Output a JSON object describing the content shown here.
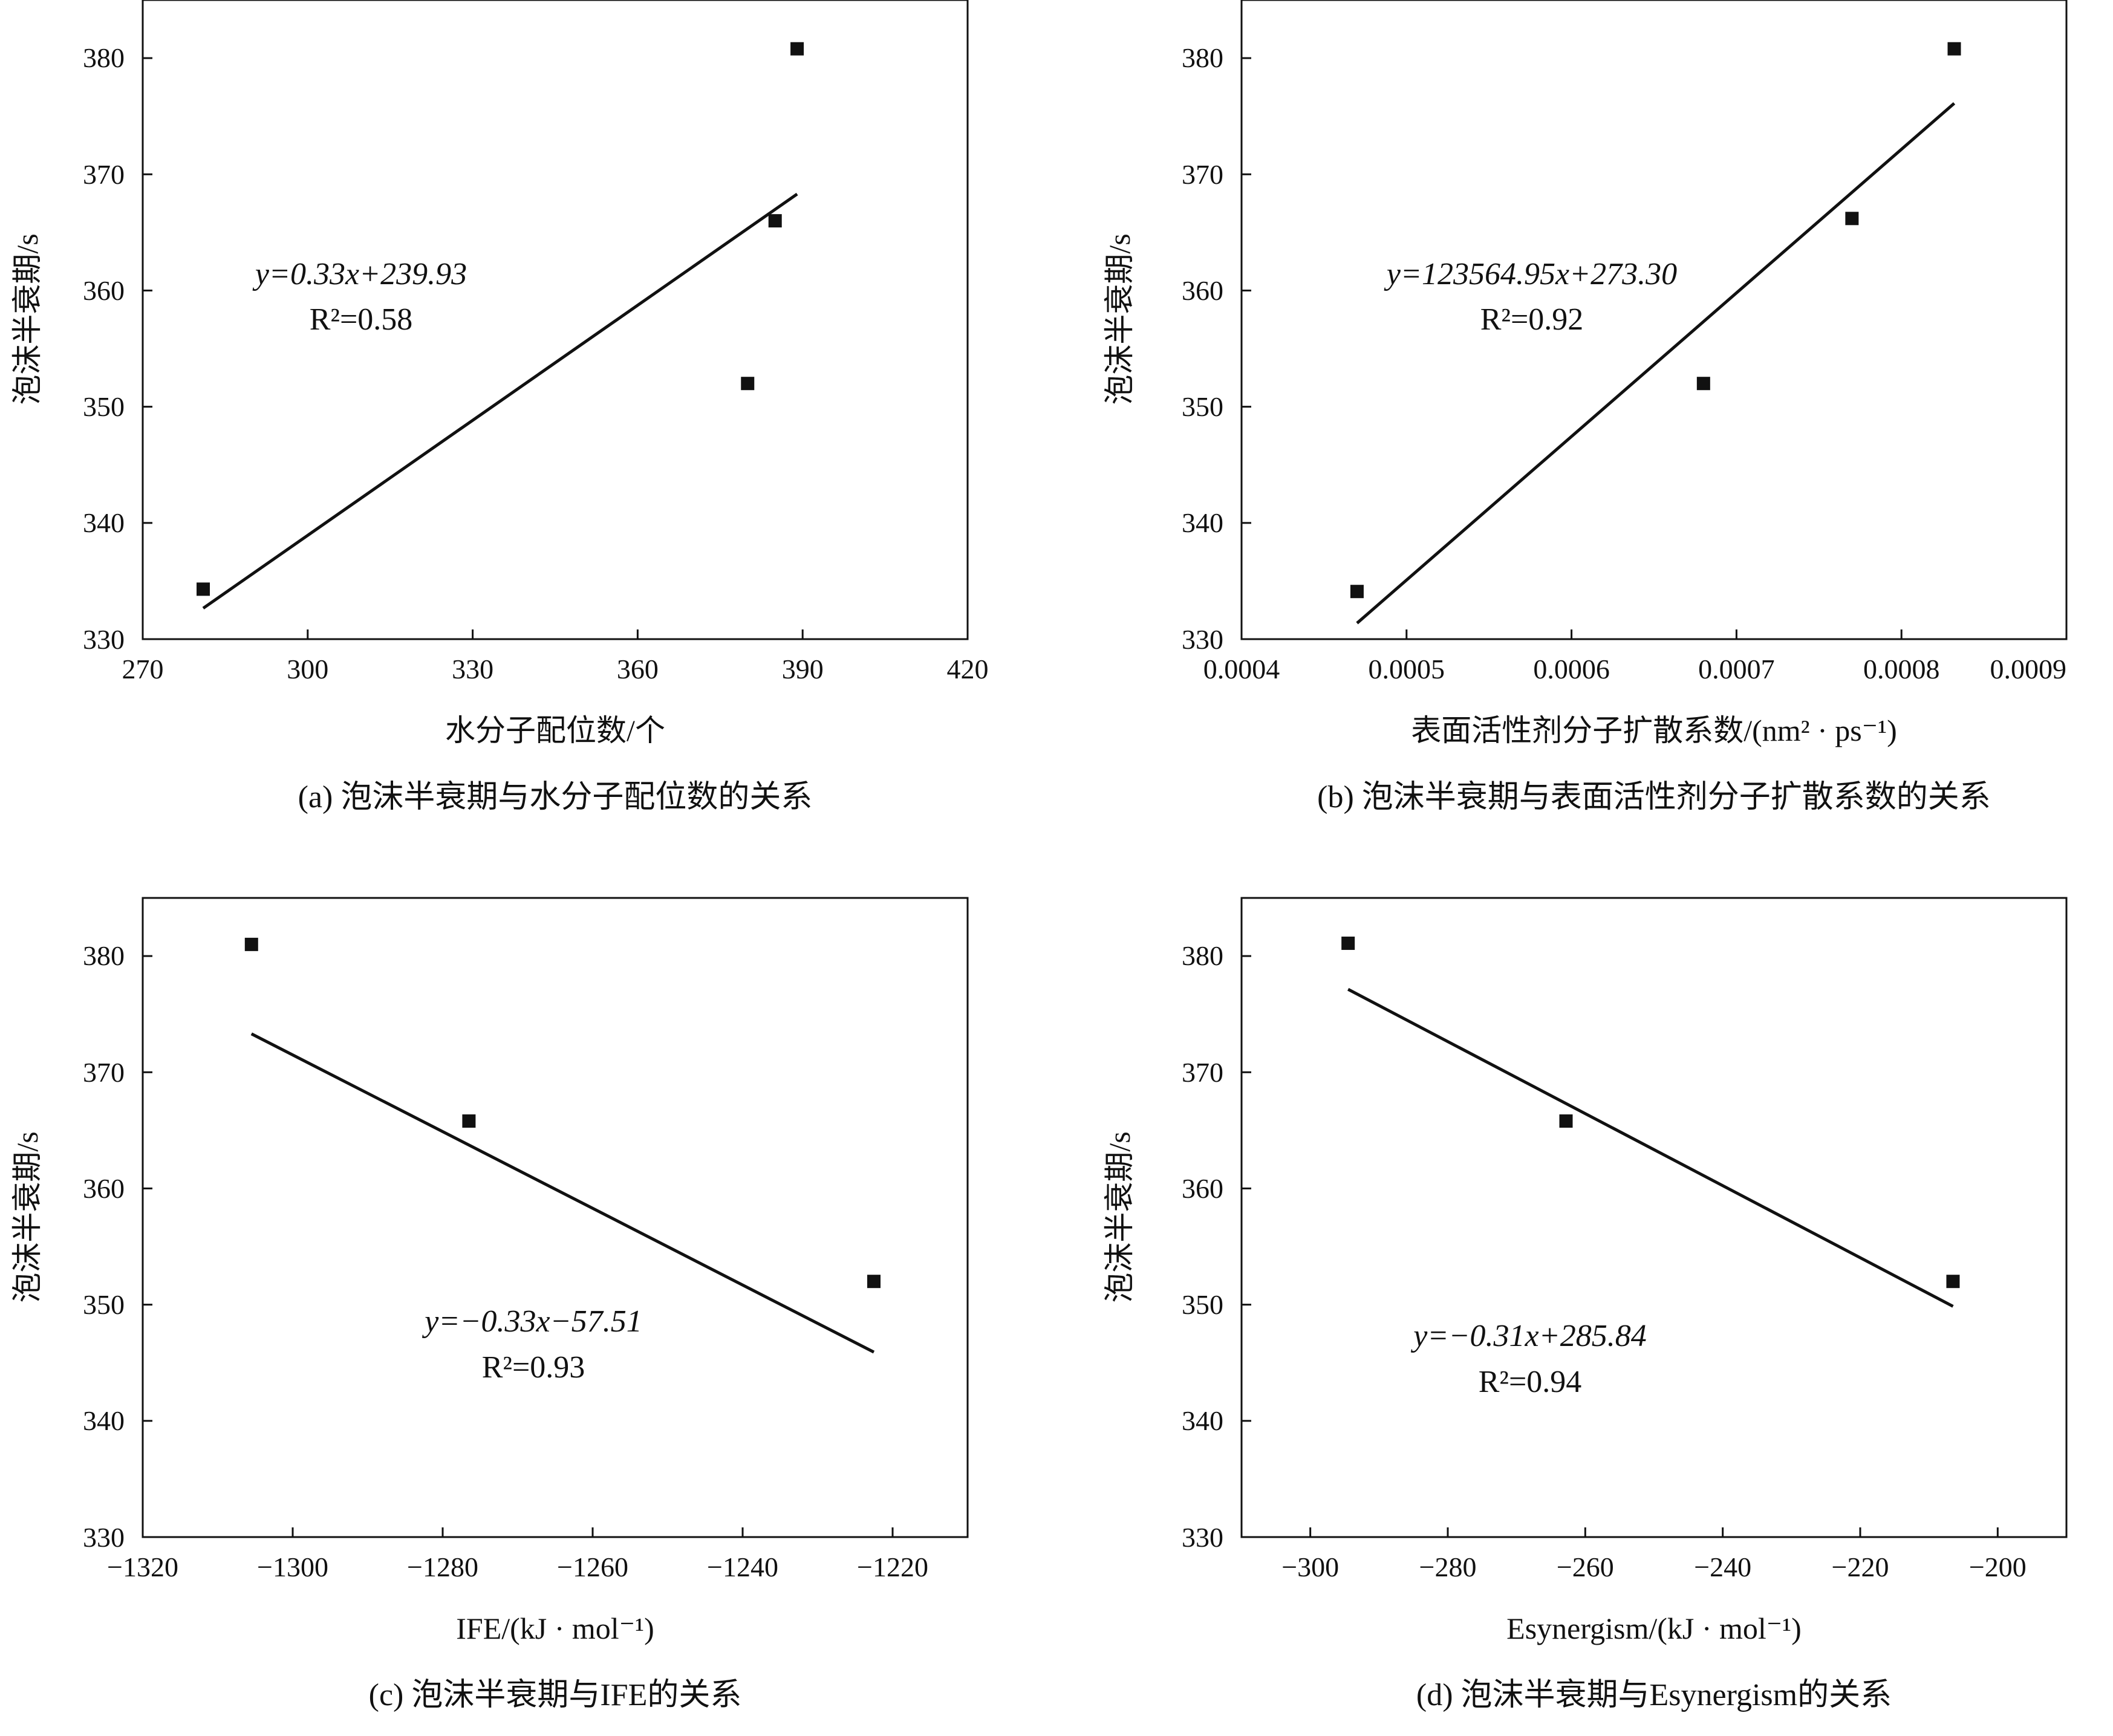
{
  "figure": {
    "colors": {
      "ink": "#111111",
      "background": "#ffffff"
    },
    "panels": [
      {
        "id": "a",
        "caption": "(a) 泡沫半衰期与水分子配位数的关系",
        "xlabel": "水分子配位数/个",
        "ylabel": "泡沫半衰期/s",
        "equation": "y=0.33x+239.93",
        "r2": "R²=0.58",
        "xticks": [
          "270",
          "300",
          "330",
          "360",
          "390",
          "420"
        ],
        "yticks": [
          "330",
          "340",
          "350",
          "360",
          "370",
          "380"
        ]
      },
      {
        "id": "b",
        "caption": "(b) 泡沫半衰期与表面活性剂分子扩散系数的关系",
        "xlabel": "表面活性剂分子扩散系数/(nm² · ps⁻¹)",
        "ylabel": "泡沫半衰期/s",
        "equation": "y=123564.95x+273.30",
        "r2": "R²=0.92",
        "xticks": [
          "0.0004",
          "0.0005",
          "0.0006",
          "0.0007",
          "0.0008",
          "0.0009"
        ],
        "yticks": [
          "330",
          "340",
          "350",
          "360",
          "370",
          "380"
        ]
      },
      {
        "id": "c",
        "caption": "(c) 泡沫半衰期与IFE的关系",
        "xlabel": "IFE/(kJ · mol⁻¹)",
        "ylabel": "泡沫半衰期/s",
        "equation": "y=−0.33x−57.51",
        "r2": "R²=0.93",
        "xticks": [
          "−1320",
          "−1300",
          "−1280",
          "−1260",
          "−1240",
          "−1220"
        ],
        "yticks": [
          "330",
          "340",
          "350",
          "360",
          "370",
          "380"
        ]
      },
      {
        "id": "d",
        "caption": "(d) 泡沫半衰期与Esynergism的关系",
        "xlabel": "Esynergism/(kJ · mol⁻¹)",
        "ylabel": "泡沫半衰期/s",
        "equation": "y=−0.31x+285.84",
        "r2": "R²=0.94",
        "xticks": [
          "−300",
          "−280",
          "−260",
          "−240",
          "−220",
          "−200"
        ],
        "yticks": [
          "330",
          "340",
          "350",
          "360",
          "370",
          "380"
        ]
      }
    ]
  },
  "chart_data": [
    {
      "type": "scatter",
      "xlim": [
        270,
        420
      ],
      "ylim": [
        330,
        385
      ],
      "xticks": [
        270,
        300,
        330,
        360,
        390,
        420
      ],
      "yticks": [
        330,
        340,
        350,
        360,
        370,
        380
      ],
      "x": [
        281,
        380,
        385,
        389
      ],
      "y": [
        334.3,
        352,
        366,
        380.8
      ],
      "fit": {
        "slope": 0.33,
        "intercept": 239.93,
        "r2": 0.58,
        "x_range": [
          281,
          389
        ]
      },
      "grid": false
    },
    {
      "type": "scatter",
      "xlim": [
        0.0004,
        0.0009
      ],
      "ylim": [
        330,
        385
      ],
      "xticks": [
        0.0004,
        0.0005,
        0.0006,
        0.0007,
        0.0008,
        0.0009
      ],
      "yticks": [
        330,
        340,
        350,
        360,
        370,
        380
      ],
      "x": [
        0.00047,
        0.00068,
        0.00077,
        0.000832
      ],
      "y": [
        334.1,
        352,
        366.2,
        380.8
      ],
      "fit": {
        "slope": 123564.95,
        "intercept": 273.3,
        "r2": 0.92,
        "x_range": [
          0.00047,
          0.000832
        ]
      },
      "grid": false
    },
    {
      "type": "scatter",
      "xlim": [
        -1320,
        -1210
      ],
      "ylim": [
        330,
        385
      ],
      "xticks": [
        -1320,
        -1300,
        -1280,
        -1260,
        -1240,
        -1220
      ],
      "yticks": [
        330,
        340,
        350,
        360,
        370,
        380
      ],
      "x": [
        -1305.5,
        -1276.5,
        -1222.5
      ],
      "y": [
        381,
        365.8,
        352
      ],
      "fit": {
        "slope": -0.33,
        "intercept": -57.51,
        "r2": 0.93,
        "x_range": [
          -1305.5,
          -1222.5
        ]
      },
      "grid": false
    },
    {
      "type": "scatter",
      "xlim": [
        -310,
        -190
      ],
      "ylim": [
        330,
        385
      ],
      "xticks": [
        -300,
        -280,
        -260,
        -240,
        -220,
        -200
      ],
      "yticks": [
        330,
        340,
        350,
        360,
        370,
        380
      ],
      "x": [
        -294.5,
        -262.8,
        -206.5
      ],
      "y": [
        381.1,
        365.8,
        352
      ],
      "fit": {
        "slope": -0.31,
        "intercept": 285.84,
        "r2": 0.94,
        "x_range": [
          -294.5,
          -206.5
        ]
      },
      "grid": false
    }
  ]
}
